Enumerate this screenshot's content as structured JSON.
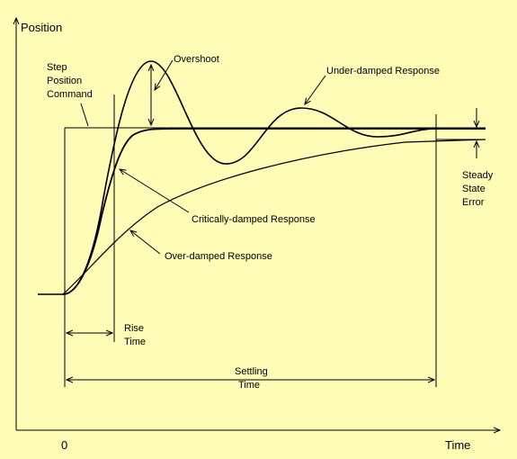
{
  "background_color": "#fefcb7",
  "line_color": "#000000",
  "axis": {
    "y_label": "Position",
    "x_label": "Time",
    "origin_label": "0"
  },
  "labels": {
    "step_command": [
      "Step",
      "Position",
      "Command"
    ],
    "overshoot": "Overshoot",
    "under_damped": "Under-damped Response",
    "critically_damped": "Critically-damped Response",
    "over_damped": "Over-damped Response",
    "rise_time": [
      "Rise",
      "Time"
    ],
    "settling_time": [
      "Settling",
      "Time"
    ],
    "steady_state_error": [
      "Steady",
      "State",
      "Error"
    ]
  }
}
